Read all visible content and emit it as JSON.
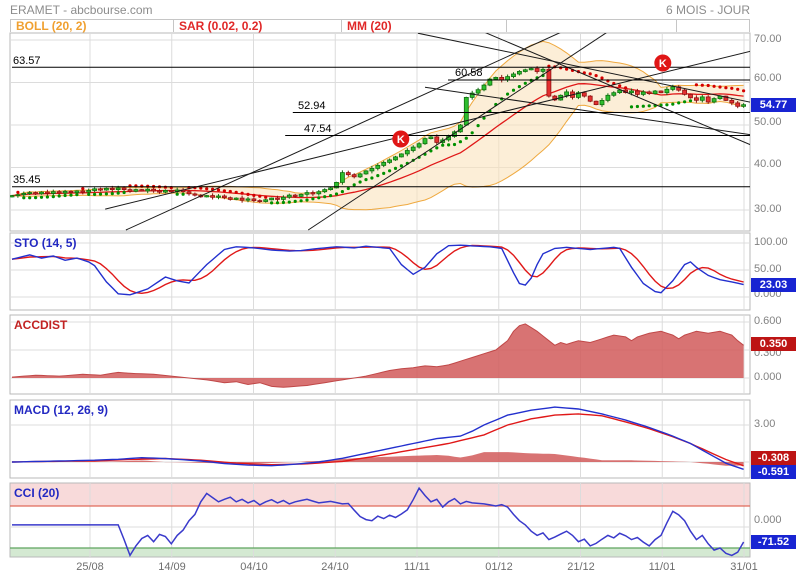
{
  "header": {
    "title": "ERAMET - abcbourse.com",
    "period": "6 MOIS - JOUR"
  },
  "legend": {
    "boll": "BOLL (20, 2)",
    "sar": "SAR (0.02, 0.2)",
    "mm": "MM (20)"
  },
  "panels": {
    "sto_label": "STO (14, 5)",
    "accdist_label": "ACCDIST",
    "macd_label": "MACD (12, 26, 9)",
    "cci_label": "CCI (20)"
  },
  "axes": {
    "price": [
      "70.00",
      "60.00",
      "50.00",
      "40.00",
      "30.00"
    ],
    "sto": [
      "100.00",
      "50.00",
      "0.000"
    ],
    "accdist": [
      "0.600",
      "0.300",
      "0.000"
    ],
    "macd": [
      "3.00"
    ],
    "cci": [
      "0.000"
    ]
  },
  "badges": {
    "price": "54.77",
    "sto": "23.03",
    "accdist": "0.350",
    "macd_signal": "-0.308",
    "macd": "-0.591",
    "cci": "-71.52"
  },
  "dates": [
    "25/08",
    "14/09",
    "04/10",
    "24/10",
    "11/11",
    "01/12",
    "21/12",
    "11/01",
    "31/01"
  ],
  "colors": {
    "candle_up": "#2EBE2E",
    "candle_down": "#E33030",
    "boll_band": "#FAE2BC",
    "boll_edge": "#EFA93F",
    "mm": "#E01818",
    "sar_up": "#009000",
    "sar_down": "#D40000",
    "line_blue": "#2330CE",
    "line_red": "#E01818",
    "area_red": "#D15B5B",
    "cci_blue": "#3A3ACB",
    "zone_pink": "#F8DADA",
    "zone_green": "#D4E9D2",
    "badge_blue": "#1824D2",
    "badge_red": "#BD1414"
  },
  "chart_data": [
    {
      "type": "candlestick",
      "name": "ERAMET daily price",
      "overlays": [
        "BOLL (20, 2)",
        "SAR (0.02, 0.2)",
        "MM (20)"
      ],
      "ylim": [
        25,
        71
      ],
      "last": 54.77,
      "close": [
        33.4,
        33.6,
        33.9,
        34.1,
        33.8,
        34.2,
        33.9,
        34.3,
        34.0,
        34.4,
        34.1,
        34.5,
        34.2,
        34.6,
        35.0,
        34.7,
        35.1,
        34.8,
        35.2,
        34.8,
        34.4,
        34.8,
        34.5,
        34.9,
        34.5,
        34.2,
        34.6,
        34.3,
        34.7,
        34.3,
        33.8,
        33.5,
        33.1,
        33.4,
        33.0,
        33.3,
        32.9,
        32.5,
        32.8,
        32.3,
        32.6,
        32.2,
        32.0,
        32.4,
        32.8,
        32.5,
        33.0,
        33.5,
        33.2,
        33.7,
        34.1,
        33.8,
        34.3,
        34.8,
        35.2,
        36.5,
        38.8,
        38.3,
        37.8,
        38.5,
        39.2,
        39.8,
        40.5,
        41.2,
        41.8,
        42.5,
        43.2,
        44.0,
        44.8,
        45.6,
        46.8,
        47.2,
        45.9,
        46.5,
        47.3,
        48.4,
        50.0,
        56.5,
        57.5,
        58.3,
        59.4,
        60.8,
        61.2,
        60.6,
        61.4,
        62.0,
        62.6,
        63.0,
        63.3,
        62.6,
        63.1,
        56.8,
        55.9,
        57.0,
        57.8,
        56.5,
        57.6,
        56.8,
        55.6,
        54.8,
        55.8,
        57.0,
        57.6,
        58.2,
        57.6,
        58.0,
        57.2,
        57.8,
        57.4,
        58.0,
        57.6,
        58.4,
        59.0,
        58.2,
        57.2,
        56.4,
        55.8,
        56.6,
        55.4,
        56.2,
        56.8,
        55.8,
        55.2,
        54.4,
        54.77
      ],
      "levels": [
        {
          "label": "63.57",
          "value": 63.57,
          "from": 0
        },
        {
          "label": "35.45",
          "value": 35.45,
          "from": 0
        },
        {
          "label": "52.94",
          "value": 52.94,
          "from": 47.6
        },
        {
          "label": "47.54",
          "value": 47.54,
          "from": 46.3
        },
        {
          "label": "60.58",
          "value": 60.58,
          "from": 73.9
        }
      ],
      "trendlines": [
        [
          19.3,
          25.3,
          94.6,
          72.8
        ],
        [
          50.2,
          25.3,
          102.7,
          73.5
        ],
        [
          15.8,
          30.2,
          126.8,
          67.9
        ],
        [
          69.2,
          78.2,
          126.8,
          44.4
        ],
        [
          68.8,
          71.6,
          126.8,
          54.9
        ],
        [
          70.0,
          58.9,
          126.8,
          47.4
        ]
      ],
      "markers": [
        {
          "label": "K",
          "day": 65.9,
          "price": 46.7
        },
        {
          "label": "K",
          "day": 110.3,
          "price": 64.6
        }
      ]
    },
    {
      "type": "line",
      "name": "STO (14, 5)",
      "ylim": [
        0,
        100
      ],
      "last": 23.03,
      "k_points": [
        [
          0,
          70
        ],
        [
          3,
          78
        ],
        [
          5,
          72
        ],
        [
          7,
          76
        ],
        [
          9,
          68
        ],
        [
          11,
          72
        ],
        [
          13,
          65
        ],
        [
          14,
          58
        ],
        [
          16,
          28
        ],
        [
          18,
          6
        ],
        [
          20,
          4
        ],
        [
          23,
          15
        ],
        [
          26,
          37
        ],
        [
          28,
          30
        ],
        [
          30,
          26
        ],
        [
          33,
          60
        ],
        [
          36,
          88
        ],
        [
          38,
          93
        ],
        [
          41,
          91
        ],
        [
          44,
          87
        ],
        [
          47,
          85
        ],
        [
          49,
          86
        ],
        [
          52,
          90
        ],
        [
          55,
          93
        ],
        [
          58,
          91
        ],
        [
          60,
          94
        ],
        [
          62,
          92
        ],
        [
          64,
          90
        ],
        [
          66,
          60
        ],
        [
          68,
          42
        ],
        [
          70,
          55
        ],
        [
          72,
          80
        ],
        [
          74,
          95
        ],
        [
          76,
          96
        ],
        [
          79,
          94
        ],
        [
          81,
          93
        ],
        [
          83,
          90
        ],
        [
          85,
          45
        ],
        [
          86,
          25
        ],
        [
          87,
          22
        ],
        [
          88,
          35
        ],
        [
          89,
          60
        ],
        [
          90,
          80
        ],
        [
          92,
          90
        ],
        [
          94,
          92
        ],
        [
          96,
          90
        ],
        [
          98,
          88
        ],
        [
          100,
          90
        ],
        [
          102,
          92
        ],
        [
          103,
          90
        ],
        [
          105,
          55
        ],
        [
          107,
          25
        ],
        [
          109,
          10
        ],
        [
          110,
          8
        ],
        [
          112,
          30
        ],
        [
          114,
          60
        ],
        [
          115,
          65
        ],
        [
          116,
          55
        ],
        [
          118,
          40
        ],
        [
          120,
          32
        ],
        [
          122,
          28
        ],
        [
          124,
          23.03
        ]
      ]
    },
    {
      "type": "area",
      "name": "ACCDIST",
      "last": 0.35,
      "points": [
        [
          0,
          0.01
        ],
        [
          4,
          0.03
        ],
        [
          8,
          0.02
        ],
        [
          12,
          0.04
        ],
        [
          15,
          0.03
        ],
        [
          18,
          0.06
        ],
        [
          20,
          0.05
        ],
        [
          24,
          0.04
        ],
        [
          27,
          0.02
        ],
        [
          30,
          0.0
        ],
        [
          33,
          -0.02
        ],
        [
          36,
          -0.05
        ],
        [
          38,
          -0.04
        ],
        [
          40,
          -0.07
        ],
        [
          42,
          -0.05
        ],
        [
          44,
          -0.09
        ],
        [
          46,
          -0.1
        ],
        [
          48,
          -0.09
        ],
        [
          50,
          -0.08
        ],
        [
          53,
          -0.05
        ],
        [
          56,
          -0.02
        ],
        [
          58,
          0.0
        ],
        [
          60,
          0.02
        ],
        [
          62,
          0.05
        ],
        [
          64,
          0.08
        ],
        [
          66,
          0.1
        ],
        [
          68,
          0.11
        ],
        [
          70,
          0.13
        ],
        [
          72,
          0.12
        ],
        [
          74,
          0.14
        ],
        [
          76,
          0.18
        ],
        [
          78,
          0.22
        ],
        [
          80,
          0.26
        ],
        [
          82,
          0.3
        ],
        [
          84,
          0.4
        ],
        [
          85,
          0.5
        ],
        [
          86,
          0.56
        ],
        [
          87,
          0.58
        ],
        [
          88,
          0.54
        ],
        [
          89,
          0.5
        ],
        [
          90,
          0.45
        ],
        [
          91,
          0.4
        ],
        [
          92,
          0.35
        ],
        [
          93,
          0.38
        ],
        [
          94,
          0.36
        ],
        [
          96,
          0.4
        ],
        [
          98,
          0.38
        ],
        [
          100,
          0.42
        ],
        [
          102,
          0.46
        ],
        [
          104,
          0.44
        ],
        [
          105,
          0.4
        ],
        [
          106,
          0.44
        ],
        [
          108,
          0.48
        ],
        [
          110,
          0.5
        ],
        [
          112,
          0.46
        ],
        [
          113,
          0.42
        ],
        [
          114,
          0.46
        ],
        [
          116,
          0.5
        ],
        [
          118,
          0.48
        ],
        [
          120,
          0.5
        ],
        [
          122,
          0.46
        ],
        [
          123,
          0.4
        ],
        [
          124,
          0.35
        ]
      ]
    },
    {
      "type": "line",
      "name": "MACD (12, 26, 9)",
      "last": -0.591,
      "signal_last": -0.308,
      "macd_points": [
        [
          0,
          0.0
        ],
        [
          5,
          0.05
        ],
        [
          10,
          0.1
        ],
        [
          14,
          0.15
        ],
        [
          18,
          0.22
        ],
        [
          22,
          0.35
        ],
        [
          25,
          0.3
        ],
        [
          28,
          0.22
        ],
        [
          32,
          0.08
        ],
        [
          36,
          -0.12
        ],
        [
          40,
          -0.25
        ],
        [
          44,
          -0.3
        ],
        [
          48,
          -0.18
        ],
        [
          52,
          0.0
        ],
        [
          56,
          0.3
        ],
        [
          60,
          0.7
        ],
        [
          64,
          1.1
        ],
        [
          68,
          1.5
        ],
        [
          72,
          1.9
        ],
        [
          76,
          2.1
        ],
        [
          78,
          2.5
        ],
        [
          80,
          3.0
        ],
        [
          82,
          3.4
        ],
        [
          84,
          3.8
        ],
        [
          88,
          4.2
        ],
        [
          92,
          4.45
        ],
        [
          96,
          4.3
        ],
        [
          100,
          3.9
        ],
        [
          104,
          3.4
        ],
        [
          108,
          2.8
        ],
        [
          112,
          2.1
        ],
        [
          115,
          1.5
        ],
        [
          118,
          0.7
        ],
        [
          121,
          -0.1
        ],
        [
          124,
          -0.591
        ]
      ],
      "signal_points": [
        [
          0,
          0.0
        ],
        [
          8,
          0.06
        ],
        [
          14,
          0.1
        ],
        [
          20,
          0.2
        ],
        [
          26,
          0.28
        ],
        [
          32,
          0.15
        ],
        [
          38,
          -0.1
        ],
        [
          44,
          -0.22
        ],
        [
          50,
          -0.15
        ],
        [
          56,
          0.05
        ],
        [
          62,
          0.5
        ],
        [
          68,
          1.0
        ],
        [
          74,
          1.5
        ],
        [
          80,
          2.2
        ],
        [
          84,
          3.0
        ],
        [
          88,
          3.5
        ],
        [
          92,
          3.8
        ],
        [
          96,
          3.9
        ],
        [
          100,
          3.75
        ],
        [
          104,
          3.25
        ],
        [
          108,
          2.7
        ],
        [
          112,
          2.05
        ],
        [
          115,
          1.5
        ],
        [
          118,
          0.85
        ],
        [
          121,
          0.2
        ],
        [
          124,
          -0.308
        ]
      ]
    },
    {
      "type": "line",
      "name": "CCI (20)",
      "upper_band": 100,
      "lower_band": -100,
      "last": -71.52,
      "points": [
        [
          0,
          10
        ],
        [
          18,
          10
        ],
        [
          19,
          -60
        ],
        [
          20,
          -135
        ],
        [
          21,
          -90
        ],
        [
          22,
          -55
        ],
        [
          23,
          -40
        ],
        [
          24,
          -70
        ],
        [
          25,
          -35
        ],
        [
          26,
          -45
        ],
        [
          27,
          -80
        ],
        [
          28,
          -40
        ],
        [
          29,
          -15
        ],
        [
          30,
          30
        ],
        [
          31,
          60
        ],
        [
          32,
          120
        ],
        [
          33,
          160
        ],
        [
          34,
          140
        ],
        [
          35,
          120
        ],
        [
          36,
          132
        ],
        [
          37,
          142
        ],
        [
          38,
          120
        ],
        [
          39,
          132
        ],
        [
          40,
          115
        ],
        [
          41,
          126
        ],
        [
          42,
          105
        ],
        [
          43,
          120
        ],
        [
          44,
          130
        ],
        [
          45,
          115
        ],
        [
          46,
          126
        ],
        [
          47,
          110
        ],
        [
          48,
          120
        ],
        [
          50,
          132
        ],
        [
          52,
          115
        ],
        [
          54,
          122
        ],
        [
          56,
          110
        ],
        [
          57,
          112
        ],
        [
          58,
          80
        ],
        [
          59,
          50
        ],
        [
          60,
          35
        ],
        [
          61,
          30
        ],
        [
          62,
          52
        ],
        [
          63,
          40
        ],
        [
          64,
          56
        ],
        [
          65,
          45
        ],
        [
          66,
          62
        ],
        [
          67,
          82
        ],
        [
          68,
          130
        ],
        [
          69,
          185
        ],
        [
          70,
          150
        ],
        [
          71,
          120
        ],
        [
          72,
          132
        ],
        [
          73,
          95
        ],
        [
          74,
          120
        ],
        [
          75,
          135
        ],
        [
          76,
          110
        ],
        [
          77,
          122
        ],
        [
          78,
          115
        ],
        [
          80,
          110
        ],
        [
          82,
          100
        ],
        [
          83,
          106
        ],
        [
          84,
          95
        ],
        [
          85,
          60
        ],
        [
          86,
          30
        ],
        [
          87,
          10
        ],
        [
          88,
          -20
        ],
        [
          89,
          -40
        ],
        [
          90,
          -28
        ],
        [
          91,
          -60
        ],
        [
          92,
          -48
        ],
        [
          94,
          -20
        ],
        [
          95,
          -40
        ],
        [
          96,
          -70
        ],
        [
          97,
          -58
        ],
        [
          98,
          -90
        ],
        [
          99,
          -78
        ],
        [
          100,
          -58
        ],
        [
          101,
          -40
        ],
        [
          102,
          -52
        ],
        [
          103,
          -30
        ],
        [
          104,
          -42
        ],
        [
          105,
          -60
        ],
        [
          106,
          -50
        ],
        [
          107,
          -72
        ],
        [
          108,
          -90
        ],
        [
          109,
          -60
        ],
        [
          110,
          -40
        ],
        [
          111,
          20
        ],
        [
          112,
          75
        ],
        [
          113,
          58
        ],
        [
          114,
          30
        ],
        [
          115,
          -20
        ],
        [
          116,
          -60
        ],
        [
          117,
          -40
        ],
        [
          118,
          -80
        ],
        [
          119,
          -110
        ],
        [
          120,
          -100
        ],
        [
          121,
          -125
        ],
        [
          122,
          -135
        ],
        [
          123,
          -120
        ],
        [
          124,
          -71.52
        ]
      ]
    }
  ]
}
